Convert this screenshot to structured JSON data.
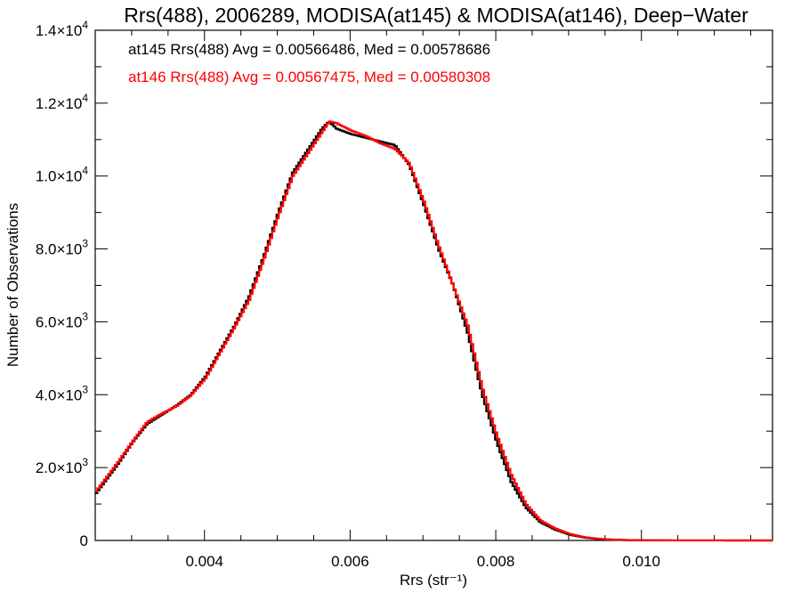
{
  "chart_data": {
    "type": "line",
    "title": "Rrs(488), 2006289, MODISA(at145) & MODISA(at146), Deep−Water",
    "xlabel": "Rrs (str⁻¹)",
    "ylabel": "Number of Observations",
    "xlim": [
      0.0025,
      0.0118
    ],
    "ylim": [
      0,
      14000
    ],
    "x_ticks": [
      {
        "value": 0.004,
        "label": "0.004"
      },
      {
        "value": 0.006,
        "label": "0.006"
      },
      {
        "value": 0.008,
        "label": "0.008"
      },
      {
        "value": 0.01,
        "label": "0.010"
      }
    ],
    "y_ticks": [
      {
        "value": 0,
        "label": "0"
      },
      {
        "value": 2000,
        "mant": "2.0",
        "exp": "3"
      },
      {
        "value": 4000,
        "mant": "4.0",
        "exp": "3"
      },
      {
        "value": 6000,
        "mant": "6.0",
        "exp": "3"
      },
      {
        "value": 8000,
        "mant": "8.0",
        "exp": "3"
      },
      {
        "value": 10000,
        "mant": "1.0",
        "exp": "4"
      },
      {
        "value": 12000,
        "mant": "1.2",
        "exp": "4"
      },
      {
        "value": 14000,
        "mant": "1.4",
        "exp": "4"
      }
    ],
    "annotations": [
      {
        "text": "at145 Rrs(488) Avg = 0.00566486, Med = 0.00578686",
        "color": "#000000"
      },
      {
        "text": "at146 Rrs(488) Avg = 0.00567475, Med = 0.00580308",
        "color": "#ff0000"
      }
    ],
    "x": [
      0.0025,
      0.0028,
      0.003,
      0.0032,
      0.0034,
      0.0036,
      0.0038,
      0.004,
      0.0042,
      0.0044,
      0.0046,
      0.0048,
      0.005,
      0.0052,
      0.0054,
      0.0056,
      0.0057,
      0.0058,
      0.006,
      0.0062,
      0.0064,
      0.0066,
      0.0068,
      0.007,
      0.0072,
      0.0074,
      0.0076,
      0.0078,
      0.008,
      0.0082,
      0.0084,
      0.0086,
      0.0088,
      0.009,
      0.0092,
      0.0094,
      0.0096,
      0.0098,
      0.01,
      0.0104,
      0.011,
      0.0118
    ],
    "series": [
      {
        "color": "#000000",
        "values": [
          1300,
          2100,
          2700,
          3200,
          3450,
          3700,
          4000,
          4500,
          5200,
          5900,
          6700,
          7800,
          9000,
          10100,
          10700,
          11300,
          11500,
          11300,
          11150,
          11050,
          10950,
          10850,
          10300,
          9200,
          8000,
          7000,
          5700,
          4000,
          2700,
          1600,
          900,
          500,
          300,
          160,
          80,
          40,
          20,
          10,
          5,
          2,
          1,
          0
        ]
      },
      {
        "color": "#ff0000",
        "values": [
          1350,
          2150,
          2720,
          3250,
          3480,
          3680,
          3980,
          4450,
          5150,
          5850,
          6600,
          7700,
          8900,
          10000,
          10600,
          11200,
          11500,
          11450,
          11250,
          11100,
          10900,
          10750,
          10350,
          9300,
          8100,
          7000,
          5900,
          4200,
          2900,
          1800,
          1000,
          550,
          330,
          180,
          90,
          45,
          22,
          10,
          5,
          2,
          1,
          0
        ]
      }
    ]
  }
}
